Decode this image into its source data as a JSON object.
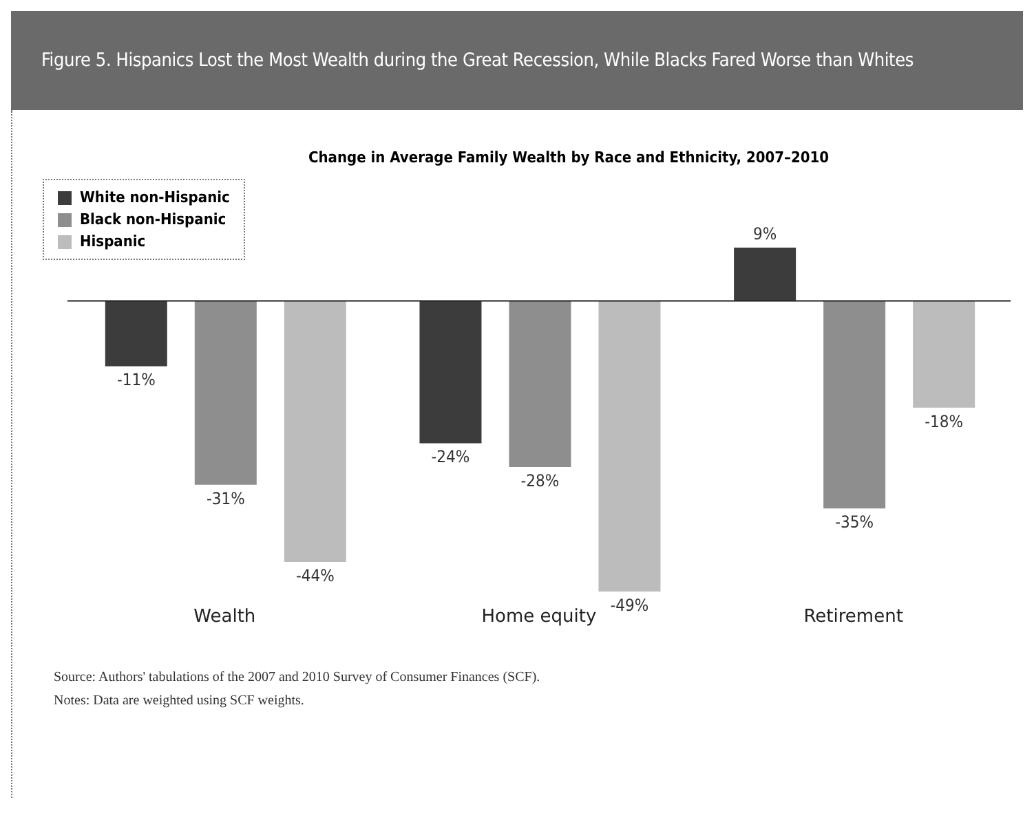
{
  "chart_data": {
    "type": "bar",
    "title": "Figure 5. Hispanics Lost the Most Wealth during the Great Recession, While Blacks Fared Worse than Whites",
    "subtitle": "Change in Average Family Wealth by Race and Ethnicity, 2007–2010",
    "categories": [
      "Wealth",
      "Home equity",
      "Retirement"
    ],
    "series": [
      {
        "name": "White non-Hispanic",
        "color": "#3c3c3c",
        "values": [
          -11,
          -24,
          9
        ],
        "value_labels": [
          "-11%",
          "-24%",
          "9%"
        ]
      },
      {
        "name": "Black non-Hispanic",
        "color": "#8e8e8e",
        "values": [
          -31,
          -28,
          -35
        ],
        "value_labels": [
          "-31%",
          "-28%",
          "-35%"
        ]
      },
      {
        "name": "Hispanic",
        "color": "#bcbcbc",
        "values": [
          -44,
          -49,
          -18
        ],
        "value_labels": [
          "-44%",
          "-49%",
          "-18%"
        ]
      }
    ],
    "legend": "top left",
    "grid": false,
    "annotations": [
      "Source: Authors' tabulations of the 2007 and 2010 Survey of Consumer Finances (SCF).",
      "Notes: Data are weighted using SCF weights."
    ]
  }
}
